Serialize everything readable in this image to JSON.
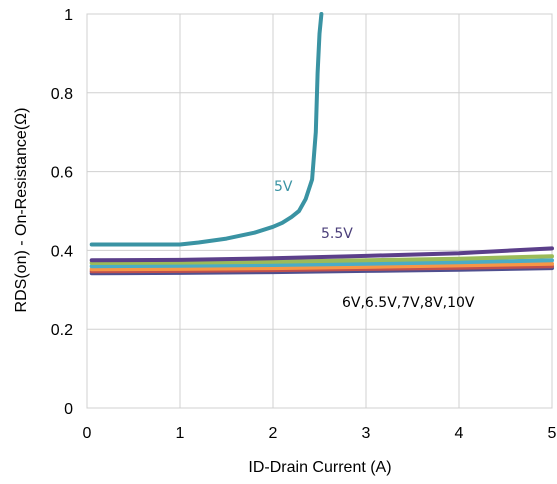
{
  "chart_data": {
    "type": "line",
    "title": "",
    "xlabel": "ID-Drain Current (A)",
    "ylabel": "RDS(on) - On-Resistance(Ω)",
    "xlim": [
      0,
      5
    ],
    "ylim": [
      0,
      1
    ],
    "x_ticks": [
      "0",
      "1",
      "2",
      "3",
      "4",
      "5"
    ],
    "y_ticks": [
      "0",
      "0.2",
      "0.4",
      "0.6",
      "0.8",
      "1"
    ],
    "grid": true,
    "legend": "none",
    "annotations": [
      {
        "text": "5V",
        "color": "#3a93a3"
      },
      {
        "text": "5.5V",
        "color": "#4b3f7a"
      },
      {
        "text": "6V,6.5V,7V,8V,10V",
        "color": "#000000"
      }
    ],
    "series": [
      {
        "color": "#3a93a3",
        "x": [
          0.05,
          1.0,
          1.2,
          1.5,
          1.8,
          2.0,
          2.1,
          2.2,
          2.28,
          2.35,
          2.42,
          2.46,
          2.48,
          2.5,
          2.52
        ],
        "y": [
          0.415,
          0.415,
          0.42,
          0.43,
          0.445,
          0.46,
          0.47,
          0.485,
          0.5,
          0.53,
          0.58,
          0.7,
          0.85,
          0.95,
          1.0
        ]
      },
      {
        "color": "#5b3f8a",
        "x": [
          0.05,
          1.0,
          2.0,
          3.0,
          4.0,
          5.0
        ],
        "y": [
          0.375,
          0.376,
          0.38,
          0.386,
          0.393,
          0.405
        ]
      },
      {
        "color": "#9bbb59",
        "x": [
          0.05,
          1.0,
          2.0,
          3.0,
          4.0,
          5.0
        ],
        "y": [
          0.368,
          0.369,
          0.371,
          0.375,
          0.379,
          0.385
        ]
      },
      {
        "color": "#4bacc6",
        "x": [
          0.05,
          1.0,
          2.0,
          3.0,
          4.0,
          5.0
        ],
        "y": [
          0.36,
          0.361,
          0.363,
          0.366,
          0.37,
          0.375
        ]
      },
      {
        "color": "#f79646",
        "x": [
          0.05,
          1.0,
          2.0,
          3.0,
          4.0,
          5.0
        ],
        "y": [
          0.352,
          0.353,
          0.355,
          0.358,
          0.362,
          0.366
        ]
      },
      {
        "color": "#c0504d",
        "x": [
          0.05,
          1.0,
          2.0,
          3.0,
          4.0,
          5.0
        ],
        "y": [
          0.347,
          0.348,
          0.35,
          0.353,
          0.356,
          0.36
        ]
      },
      {
        "color": "#4f4f8f",
        "x": [
          0.05,
          1.0,
          2.0,
          3.0,
          4.0,
          5.0
        ],
        "y": [
          0.342,
          0.343,
          0.345,
          0.348,
          0.351,
          0.355
        ]
      }
    ]
  }
}
